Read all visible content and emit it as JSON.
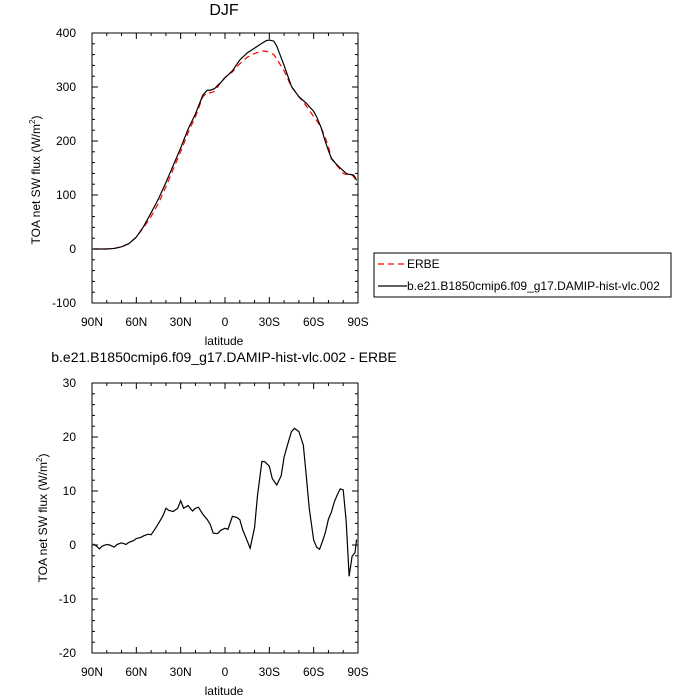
{
  "chart_data": [
    {
      "type": "line",
      "title": "DJF",
      "xlabel": "latitude",
      "ylabel": "TOA net SW flux (W/m",
      "ylabel_sup": "2",
      "ylabel_close": ")",
      "xlim": [
        90,
        -90
      ],
      "ylim": [
        -100,
        400
      ],
      "x_ticks": [
        90,
        60,
        30,
        0,
        -30,
        -60,
        -90
      ],
      "x_tick_labels": [
        "90N",
        "60N",
        "30N",
        "0",
        "30S",
        "60S",
        "90S"
      ],
      "y_ticks": [
        -100,
        0,
        100,
        200,
        300,
        400
      ],
      "y_tick_labels": [
        "-100",
        "0",
        "100",
        "200",
        "300",
        "400"
      ],
      "legend": {
        "position": "right",
        "entries": [
          "ERBE",
          "b.e21.B1850cmip6.f09_g17.DAMIP-hist-vlc.002"
        ]
      },
      "series": [
        {
          "name": "ERBE",
          "color": "#ff0000",
          "dash": "dashed",
          "x": [
            89,
            85,
            80,
            75,
            70,
            65,
            60,
            55,
            50,
            45,
            40,
            35,
            30,
            25,
            20,
            15,
            12,
            10,
            7,
            5,
            3,
            0,
            -5,
            -10,
            -15,
            -20,
            -25,
            -28,
            -30,
            -33,
            -35,
            -40,
            -45,
            -50,
            -55,
            -60,
            -62,
            -65,
            -68,
            -70,
            -72,
            -75,
            -78,
            -80,
            -82,
            -84,
            -85,
            -87,
            -88,
            -89
          ],
          "y": [
            0,
            0,
            0,
            1,
            4,
            10,
            22,
            40,
            60,
            85,
            115,
            148,
            180,
            215,
            245,
            282,
            290,
            289,
            292,
            300,
            308,
            318,
            328,
            343,
            355,
            362,
            367,
            366,
            364,
            360,
            352,
            330,
            300,
            282,
            265,
            245,
            238,
            225,
            205,
            190,
            167,
            157,
            147,
            140,
            138,
            140,
            140,
            134,
            130,
            127
          ]
        },
        {
          "name": "b.e21.B1850cmip6.f09_g17.DAMIP-hist-vlc.002",
          "color": "#000000",
          "dash": "solid",
          "x": [
            89,
            85,
            80,
            75,
            70,
            65,
            60,
            55,
            50,
            45,
            40,
            35,
            30,
            25,
            20,
            15,
            12,
            10,
            7,
            5,
            3,
            0,
            -5,
            -10,
            -15,
            -20,
            -25,
            -28,
            -30,
            -33,
            -35,
            -40,
            -45,
            -50,
            -55,
            -60,
            -62,
            -65,
            -68,
            -70,
            -72,
            -75,
            -78,
            -80,
            -82,
            -84,
            -85,
            -87,
            -88,
            -89
          ],
          "y": [
            0,
            0,
            0,
            1,
            4,
            10,
            22,
            42,
            67,
            93,
            123,
            155,
            187,
            222,
            250,
            285,
            294,
            294,
            297,
            303,
            308,
            317,
            330,
            350,
            363,
            372,
            381,
            386,
            387,
            385,
            376,
            340,
            301,
            282,
            270,
            255,
            245,
            225,
            198,
            182,
            168,
            158,
            150,
            145,
            140,
            138,
            138,
            137,
            133,
            127
          ]
        }
      ]
    },
    {
      "type": "line",
      "title": "b.e21.B1850cmip6.f09_g17.DAMIP-hist-vlc.002 - ERBE",
      "xlabel": "latitude",
      "ylabel": "TOA net SW flux (W/m",
      "ylabel_sup": "2",
      "ylabel_close": ")",
      "xlim": [
        90,
        -90
      ],
      "ylim": [
        -20,
        30
      ],
      "x_ticks": [
        90,
        60,
        30,
        0,
        -30,
        -60,
        -90
      ],
      "x_tick_labels": [
        "90N",
        "60N",
        "30N",
        "0",
        "30S",
        "60S",
        "90S"
      ],
      "y_ticks": [
        -20,
        -10,
        0,
        10,
        20,
        30
      ],
      "y_tick_labels": [
        "-20",
        "-10",
        "0",
        "10",
        "20",
        "30"
      ],
      "series": [
        {
          "color": "#000000",
          "dash": "solid",
          "x": [
            89,
            87,
            85,
            83,
            80,
            78,
            75,
            73,
            70,
            67,
            65,
            62,
            60,
            57,
            55,
            52,
            50,
            48,
            45,
            42,
            40,
            38,
            35,
            32,
            30,
            28,
            25,
            22,
            20,
            18,
            15,
            12,
            10,
            8,
            5,
            3,
            0,
            -2,
            -5,
            -8,
            -10,
            -12,
            -15,
            -17,
            -20,
            -22,
            -25,
            -27,
            -30,
            -32,
            -35,
            -38,
            -40,
            -43,
            -45,
            -47,
            -50,
            -53,
            -55,
            -57,
            -60,
            -62,
            -64,
            -66,
            -68,
            -70,
            -72,
            -74,
            -76,
            -78,
            -80,
            -82,
            -84,
            -86,
            -88,
            -89
          ],
          "y": [
            0.2,
            -0.2,
            -0.7,
            -0.2,
            0.1,
            0,
            -0.4,
            0.1,
            0.4,
            0.1,
            0.5,
            0.8,
            1.2,
            1.4,
            1.7,
            2,
            1.9,
            2.7,
            4,
            5.4,
            6.8,
            6.4,
            6.2,
            6.8,
            8.2,
            6.8,
            7.3,
            6.3,
            6.8,
            7,
            5.7,
            4.7,
            3.8,
            2.2,
            2.1,
            2.7,
            3.1,
            2.9,
            5.3,
            5.1,
            4.7,
            2.8,
            0.8,
            -0.6,
            3.2,
            9.2,
            15.5,
            15.4,
            14.6,
            12.3,
            11.1,
            12.8,
            16.3,
            19.2,
            21,
            21.6,
            21,
            18.5,
            12.8,
            6.8,
            0.9,
            -0.4,
            -0.8,
            0.7,
            2.4,
            4.8,
            6.1,
            8,
            9.3,
            10.4,
            10.2,
            4.4,
            -5.8,
            -2.1,
            -1.4,
            1
          ]
        }
      ]
    }
  ]
}
